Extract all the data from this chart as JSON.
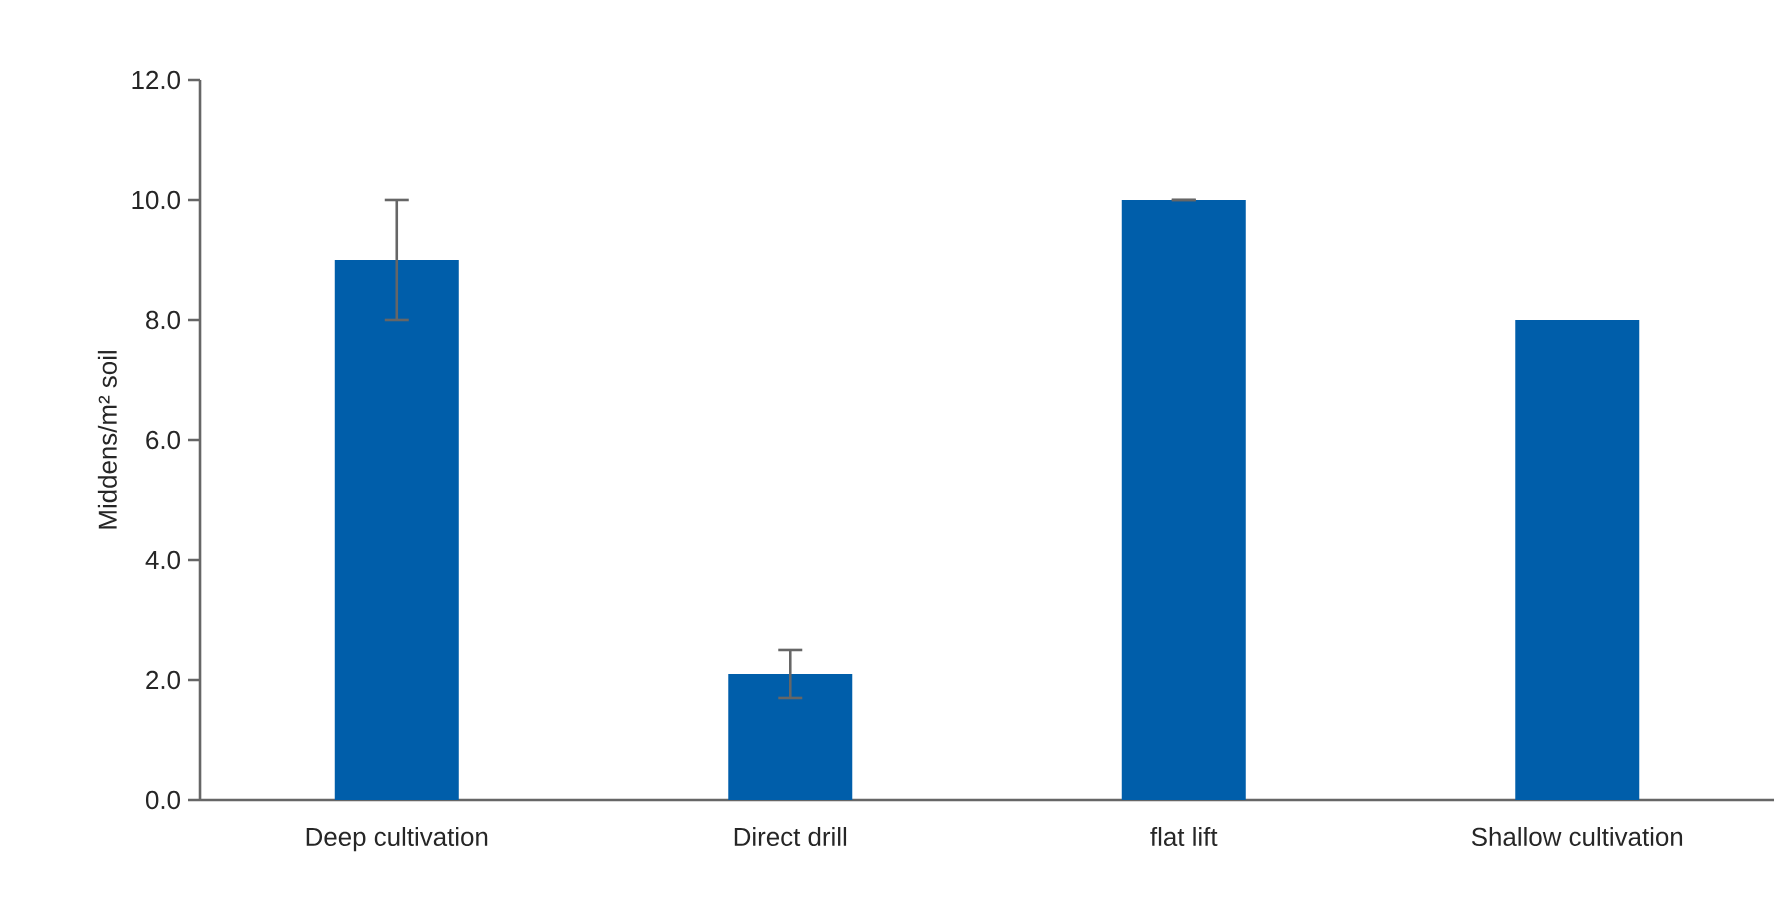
{
  "chart_data": {
    "type": "bar",
    "ylabel": "Middens/m² soil",
    "categories": [
      "Deep cultivation",
      "Direct drill",
      "flat lift",
      "Shallow cultivation"
    ],
    "values": [
      9.0,
      2.1,
      10.0,
      8.0
    ],
    "errors": [
      [
        8.0,
        10.0
      ],
      [
        1.7,
        2.5
      ],
      0,
      null
    ],
    "color": "#005eaa",
    "ylim": [
      0,
      12
    ],
    "yticks": [
      {
        "value": 0,
        "label": "0.0"
      },
      {
        "value": 2,
        "label": "2.0"
      },
      {
        "value": 4,
        "label": "4.0"
      },
      {
        "value": 6,
        "label": "6.0"
      },
      {
        "value": 8,
        "label": "8.0"
      },
      {
        "value": 10,
        "label": "10.0"
      },
      {
        "value": 12,
        "label": "12.0"
      }
    ],
    "grid": false
  }
}
